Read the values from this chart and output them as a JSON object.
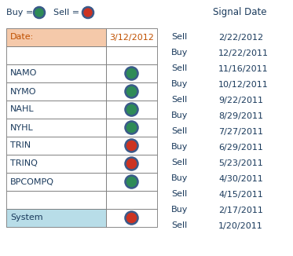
{
  "title_right": "Signal Date",
  "current_date": "3/12/2012",
  "table_rows": [
    {
      "label": "Date:",
      "signal": null,
      "bg": "#f5c9aa"
    },
    {
      "label": "",
      "signal": null,
      "bg": "#ffffff"
    },
    {
      "label": "NAMO",
      "signal": "buy",
      "bg": "#ffffff"
    },
    {
      "label": "NYMO",
      "signal": "buy",
      "bg": "#ffffff"
    },
    {
      "label": "NAHL",
      "signal": "buy",
      "bg": "#ffffff"
    },
    {
      "label": "NYHL",
      "signal": "buy",
      "bg": "#ffffff"
    },
    {
      "label": "TRIN",
      "signal": "sell",
      "bg": "#ffffff"
    },
    {
      "label": "TRINQ",
      "signal": "sell",
      "bg": "#ffffff"
    },
    {
      "label": "BPCOMPQ",
      "signal": "buy",
      "bg": "#ffffff"
    },
    {
      "label": "",
      "signal": null,
      "bg": "#ffffff"
    },
    {
      "label": "System",
      "signal": "sell",
      "bg": "#b8dde8"
    }
  ],
  "signal_list": [
    {
      "action": "Sell",
      "date": "2/22/2012"
    },
    {
      "action": "Buy",
      "date": "12/22/2011"
    },
    {
      "action": "Sell",
      "date": "11/16/2011"
    },
    {
      "action": "Buy",
      "date": "10/12/2011"
    },
    {
      "action": "Sell",
      "date": "9/22/2011"
    },
    {
      "action": "Buy",
      "date": "8/29/2011"
    },
    {
      "action": "Sell",
      "date": "7/27/2011"
    },
    {
      "action": "Buy",
      "date": "6/29/2011"
    },
    {
      "action": "Sell",
      "date": "5/23/2011"
    },
    {
      "action": "Buy",
      "date": "4/30/2011"
    },
    {
      "action": "Sell",
      "date": "4/15/2011"
    },
    {
      "action": "Buy",
      "date": "2/17/2011"
    },
    {
      "action": "Sell",
      "date": "1/20/2011"
    }
  ],
  "text_color": "#1a3a5c",
  "buy_fill": "#2e8b57",
  "sell_fill": "#cc3322",
  "dot_edge_color": "#3a5a8a",
  "table_border_color": "#777777",
  "header_text_color": "#c05000",
  "fig_w": 3.73,
  "fig_h": 3.26,
  "dpi": 100
}
